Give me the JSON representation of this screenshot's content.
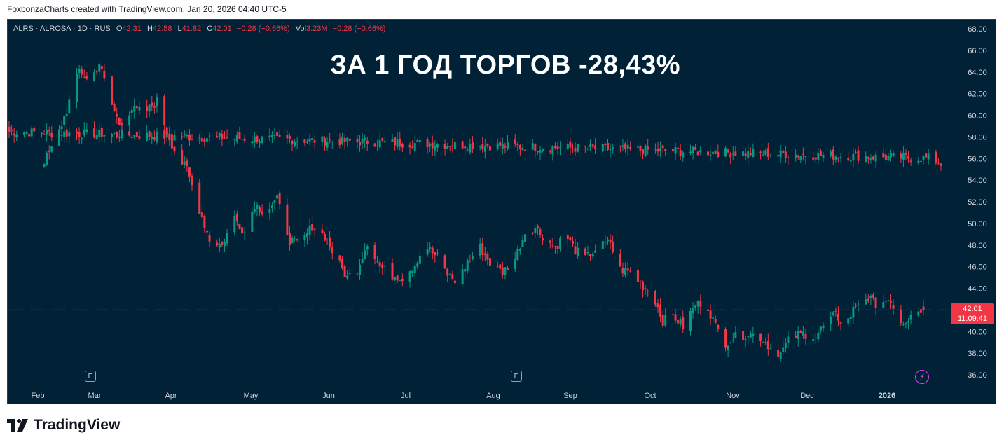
{
  "attribution": "FoxbonzaCharts created with TradingView.com, Jan 20, 2026 04:40 UTC-5",
  "brand": {
    "name": "TradingView",
    "icon": "tradingview-logo-icon"
  },
  "legend": {
    "symbol": "ALRS · ALROSA · 1D · RUS",
    "o_label": "O",
    "o_value": "42.31",
    "h_label": "H",
    "h_value": "42.58",
    "l_label": "L",
    "l_value": "41.82",
    "c_label": "C",
    "c_value": "42.01",
    "change": "−0.28 (−0.66%)",
    "vol_label": "Vol",
    "vol_value": "3.23M",
    "vol_change": "−0.28 (−0.66%)"
  },
  "headline": "ЗА 1 ГОД ТОРГОВ -28,43%",
  "price_tag": {
    "price": "42.01",
    "countdown": "11:09:41"
  },
  "markers": {
    "earnings_label": "E",
    "bolt_icon": "lightning-icon"
  },
  "colors": {
    "background": "#012136",
    "up": "#089981",
    "down": "#f23645",
    "text": "#d1d4dc"
  },
  "chart_data": {
    "type": "candlestick",
    "y_axis": {
      "ticks": [
        "68.00",
        "66.00",
        "64.00",
        "62.00",
        "60.00",
        "58.00",
        "56.00",
        "54.00",
        "52.00",
        "50.00",
        "48.00",
        "46.00",
        "44.00",
        "42.00",
        "40.00",
        "38.00",
        "36.00"
      ],
      "range": [
        35,
        69
      ],
      "position": "right"
    },
    "x_axis": {
      "labels": [
        "Feb",
        "Mar",
        "Apr",
        "May",
        "Jun",
        "Jul",
        "Aug",
        "Sep",
        "Oct",
        "Nov",
        "Dec",
        "2026"
      ]
    },
    "last_price": 42.01,
    "close_path": [
      [
        "Jan 20",
        58.5
      ],
      [
        "Jan 24",
        56.0
      ],
      [
        "Jan 28",
        55.3
      ],
      [
        "Feb 3",
        55.8
      ],
      [
        "Feb 7",
        57.2
      ],
      [
        "Feb 12",
        60.5
      ],
      [
        "Feb 17",
        64.2
      ],
      [
        "Feb 21",
        63.0
      ],
      [
        "Feb 25",
        64.8
      ],
      [
        "Mar 1",
        61.5
      ],
      [
        "Mar 5",
        59.2
      ],
      [
        "Mar 10",
        60.6
      ],
      [
        "Mar 15",
        60.2
      ],
      [
        "Mar 20",
        61.3
      ],
      [
        "Mar 24",
        58.5
      ],
      [
        "Mar 28",
        56.2
      ],
      [
        "Apr 1",
        55.0
      ],
      [
        "Apr 5",
        52.0
      ],
      [
        "Apr 10",
        48.5
      ],
      [
        "Apr 15",
        48.0
      ],
      [
        "Apr 20",
        50.5
      ],
      [
        "Apr 24",
        49.2
      ],
      [
        "Apr 28",
        51.8
      ],
      [
        "May 2",
        51.0
      ],
      [
        "May 7",
        52.2
      ],
      [
        "May 12",
        48.5
      ],
      [
        "May 16",
        48.0
      ],
      [
        "May 21",
        49.8
      ],
      [
        "May 26",
        48.8
      ],
      [
        "May 30",
        47.0
      ],
      [
        "Jun 4",
        45.0
      ],
      [
        "Jun 8",
        45.8
      ],
      [
        "Jun 12",
        48.3
      ],
      [
        "Jun 17",
        46.0
      ],
      [
        "Jun 22",
        45.2
      ],
      [
        "Jun 26",
        45.0
      ],
      [
        "Jul 1",
        46.2
      ],
      [
        "Jul 5",
        48.0
      ],
      [
        "Jul 10",
        46.8
      ],
      [
        "Jul 14",
        45.3
      ],
      [
        "Jul 18",
        44.5
      ],
      [
        "Jul 22",
        46.5
      ],
      [
        "Jul 27",
        47.8
      ],
      [
        "Aug 1",
        46.0
      ],
      [
        "Aug 5",
        45.5
      ],
      [
        "Aug 10",
        46.8
      ],
      [
        "Aug 14",
        49.2
      ],
      [
        "Aug 18",
        49.6
      ],
      [
        "Aug 22",
        48.6
      ],
      [
        "Aug 26",
        47.8
      ],
      [
        "Aug 30",
        49.0
      ],
      [
        "Sep 3",
        47.5
      ],
      [
        "Sep 7",
        46.8
      ],
      [
        "Sep 12",
        47.8
      ],
      [
        "Sep 17",
        48.3
      ],
      [
        "Sep 20",
        45.8
      ],
      [
        "Sep 25",
        45.5
      ],
      [
        "Sep 30",
        44.2
      ],
      [
        "Oct 4",
        43.5
      ],
      [
        "Oct 8",
        41.0
      ],
      [
        "Oct 12",
        41.5
      ],
      [
        "Oct 16",
        40.5
      ],
      [
        "Oct 21",
        42.5
      ],
      [
        "Oct 25",
        42.8
      ],
      [
        "Oct 29",
        40.5
      ],
      [
        "Nov 2",
        39.0
      ],
      [
        "Nov 6",
        39.5
      ],
      [
        "Nov 11",
        39.8
      ],
      [
        "Nov 16",
        39.5
      ],
      [
        "Nov 20",
        38.5
      ],
      [
        "Nov 24",
        38.0
      ],
      [
        "Nov 28",
        39.5
      ],
      [
        "Dec 3",
        39.8
      ],
      [
        "Dec 8",
        39.6
      ],
      [
        "Dec 12",
        40.8
      ],
      [
        "Dec 16",
        41.5
      ],
      [
        "Dec 20",
        40.6
      ],
      [
        "Dec 24",
        42.5
      ],
      [
        "Dec 28",
        43.2
      ],
      [
        "Jan 1",
        42.6
      ],
      [
        "Jan 5",
        43.0
      ],
      [
        "Jan 9",
        41.5
      ],
      [
        "Jan 13",
        40.6
      ],
      [
        "Jan 16",
        41.6
      ],
      [
        "Jan 20",
        42.01
      ]
    ]
  }
}
